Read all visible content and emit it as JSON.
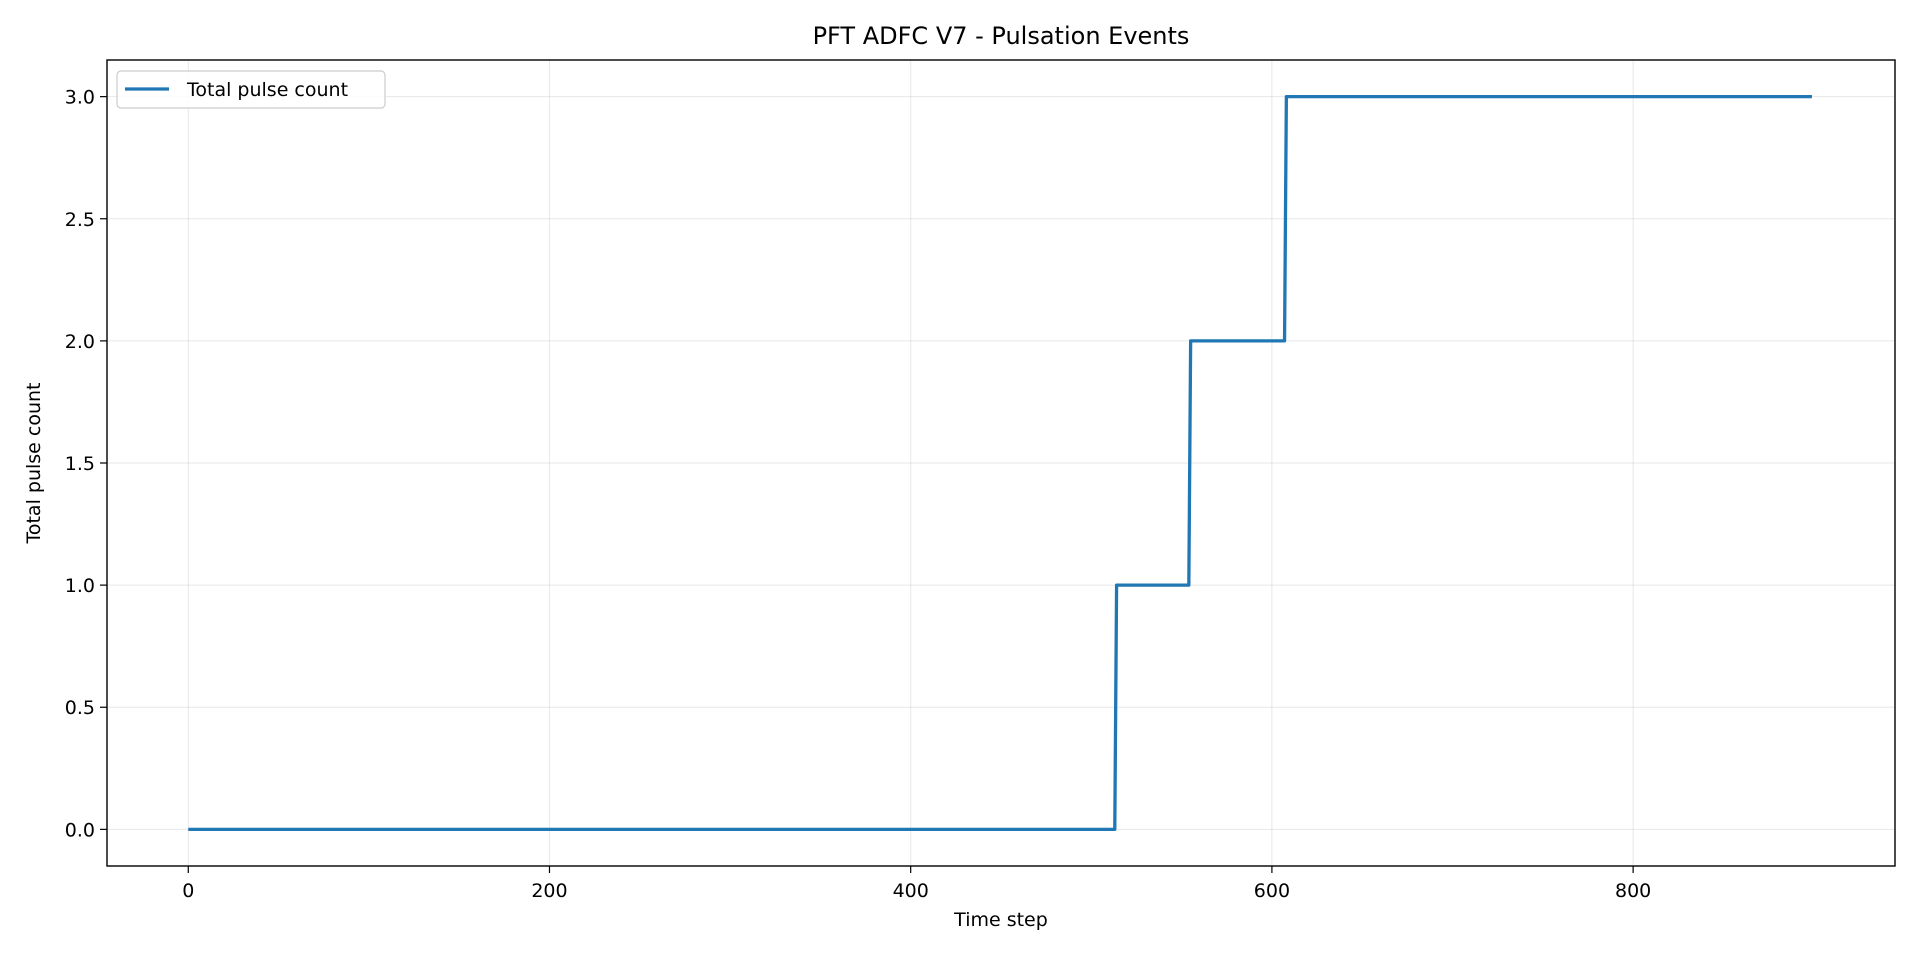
{
  "chart_data": {
    "type": "line",
    "title": "PFT ADFC V7 - Pulsation Events",
    "xlabel": "Time step",
    "ylabel": "Total pulse count",
    "xlim": [
      -45,
      945
    ],
    "ylim": [
      -0.15,
      3.15
    ],
    "xticks": [
      0,
      200,
      400,
      600,
      800
    ],
    "xtick_labels": [
      "0",
      "200",
      "400",
      "600",
      "800"
    ],
    "yticks": [
      0.0,
      0.5,
      1.0,
      1.5,
      2.0,
      2.5,
      3.0
    ],
    "ytick_labels": [
      "0.0",
      "0.5",
      "1.0",
      "1.5",
      "2.0",
      "2.5",
      "3.0"
    ],
    "grid": true,
    "legend_position": "upper-left",
    "series": [
      {
        "name": "Total pulse count",
        "color": "#1f77b4",
        "x": [
          0,
          513,
          514,
          554,
          555,
          607,
          608,
          899
        ],
        "y": [
          0,
          0,
          1,
          1,
          2,
          2,
          3,
          3
        ]
      }
    ]
  }
}
